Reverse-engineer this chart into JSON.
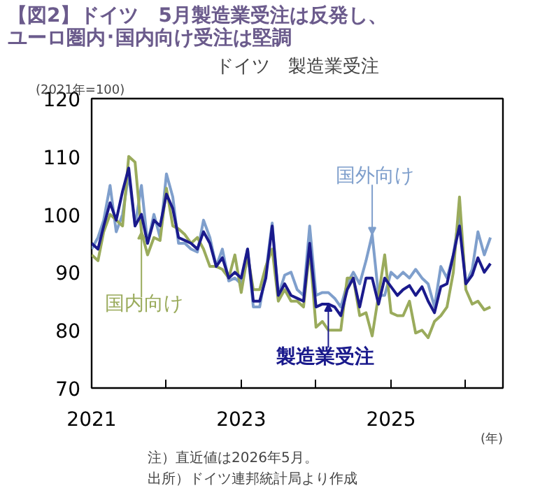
{
  "chart_data": {
    "type": "line",
    "title": "【図2】ドイツ　5月製造業受注は反発し、ユーロ圏内･国内向け受注は堅調",
    "subtitle": "ドイツ　製造業受注",
    "ylabel": "(2021年=100)",
    "xlabel": "(年)",
    "x": [
      "2021-01",
      "2021-02",
      "2021-03",
      "2021-04",
      "2021-05",
      "2021-06",
      "2021-07",
      "2021-08",
      "2021-09",
      "2021-10",
      "2021-11",
      "2021-12",
      "2022-01",
      "2022-02",
      "2022-03",
      "2022-04",
      "2022-05",
      "2022-06",
      "2022-07",
      "2022-08",
      "2022-09",
      "2022-10",
      "2022-11",
      "2022-12",
      "2023-01",
      "2023-02",
      "2023-03",
      "2023-04",
      "2023-05",
      "2023-06",
      "2023-07",
      "2023-08",
      "2023-09",
      "2023-10",
      "2023-11",
      "2023-12",
      "2024-01",
      "2024-02",
      "2024-03",
      "2024-04",
      "2024-05",
      "2024-06",
      "2024-07",
      "2024-08",
      "2024-09",
      "2024-10",
      "2024-11",
      "2024-12",
      "2025-01",
      "2025-02",
      "2025-03",
      "2025-04",
      "2025-05",
      "2025-06",
      "2025-07",
      "2025-08",
      "2025-09",
      "2025-10",
      "2025-11",
      "2025-12",
      "2026-01",
      "2026-02",
      "2026-03",
      "2026-04",
      "2026-05"
    ],
    "series": [
      {
        "color": "#7f9fcc",
        "values": [
          94,
          96,
          99,
          105,
          97,
          100,
          107,
          98,
          105,
          95,
          100,
          96,
          107,
          103,
          95,
          95,
          94,
          93.5,
          99,
          96,
          91,
          94,
          88.5,
          89,
          88,
          94,
          84,
          84,
          90,
          98.5,
          86,
          89.5,
          90,
          87,
          86,
          98,
          86,
          86.5,
          86.5,
          85.5,
          84,
          88,
          90,
          88,
          92,
          96.5,
          86,
          86,
          90,
          89,
          90,
          89,
          90.5,
          89,
          88,
          84,
          91,
          89,
          93,
          100,
          88,
          90.5,
          97,
          93,
          96
        ]
      },
      {
        "color": "#9aab5c",
        "values": [
          93,
          92,
          97,
          100,
          99,
          98,
          110,
          109,
          97,
          93,
          96,
          95.5,
          104.5,
          98,
          97.5,
          96.5,
          95,
          96,
          94,
          91,
          91,
          90.5,
          89,
          93,
          86.5,
          93,
          87,
          87,
          91,
          94,
          85,
          87,
          85,
          85,
          84,
          94,
          80.5,
          81.5,
          80,
          80,
          80,
          89,
          89,
          82.5,
          83,
          79,
          86,
          93,
          83,
          82.5,
          82.5,
          85,
          79.5,
          80,
          78.7,
          81.5,
          82.5,
          84,
          90,
          103,
          87,
          84.5,
          85,
          83.5,
          84
        ]
      },
      {
        "color": "#1a1a8c",
        "values": [
          95,
          94,
          98,
          102,
          99,
          104,
          108,
          98,
          100,
          95,
          99,
          98,
          103.5,
          101,
          96,
          95.5,
          95,
          94,
          97,
          95,
          91,
          92.5,
          89,
          90,
          89,
          94,
          85,
          85,
          89,
          98,
          86,
          88,
          86,
          85.5,
          85,
          95,
          84,
          84.5,
          84.5,
          84,
          82.5,
          87,
          89,
          84,
          89,
          89,
          84.5,
          89,
          87.5,
          86,
          87,
          87.7,
          86,
          87.5,
          85,
          83,
          87.5,
          88,
          93,
          98,
          88,
          89.5,
          92.5,
          90,
          91.5
        ]
      }
    ],
    "annotations": [
      {
        "text": "国外向け",
        "x": "2024-10",
        "y": 96.5
      },
      {
        "text": "国内向け",
        "x": "2021-09",
        "y": 97
      },
      {
        "text": "製造業受注",
        "x": "2024-03",
        "y": 84.5
      },
      "注）直近値は2026年5月。",
      "出所）ドイツ連邦統計局より作成"
    ],
    "xlim": [
      "2021-01",
      "2026-07"
    ],
    "ylim": [
      70,
      120
    ],
    "yticks": [
      70,
      80,
      90,
      100,
      110,
      120
    ],
    "xticks": [
      {
        "value": "2021",
        "label": "2021"
      },
      {
        "value": "2022",
        "label": null
      },
      {
        "value": "2023",
        "label": "2023"
      },
      {
        "value": "2024",
        "label": null
      },
      {
        "value": "2025",
        "label": "2025"
      },
      {
        "value": "2026",
        "label": null
      }
    ],
    "grid": false
  }
}
